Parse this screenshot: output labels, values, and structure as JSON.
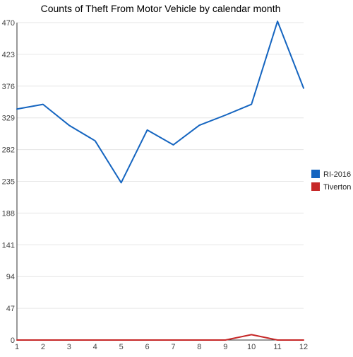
{
  "chart_data": {
    "type": "line",
    "title": "Counts of Theft From Motor Vehicle by calendar month",
    "xlabel": "",
    "ylabel": "",
    "x": [
      1,
      2,
      3,
      4,
      5,
      6,
      7,
      8,
      9,
      10,
      11,
      12
    ],
    "x_ticks": [
      "1",
      "2",
      "3",
      "4",
      "5",
      "6",
      "7",
      "8",
      "9",
      "10",
      "11",
      "12"
    ],
    "y_ticks": [
      "0",
      "47",
      "94",
      "141",
      "188",
      "235",
      "282",
      "329",
      "376",
      "423",
      "470"
    ],
    "ylim": [
      0,
      470
    ],
    "grid": true,
    "legend_position": "right",
    "series": [
      {
        "name": "RI-2016",
        "color": "#1565c0",
        "values": [
          342,
          349,
          318,
          295,
          233,
          311,
          289,
          318,
          333,
          349,
          472,
          373
        ]
      },
      {
        "name": "Tiverton",
        "color": "#c62828",
        "values": [
          0,
          0,
          0,
          0,
          0,
          0,
          0,
          0,
          0,
          8,
          0,
          0
        ]
      }
    ]
  }
}
